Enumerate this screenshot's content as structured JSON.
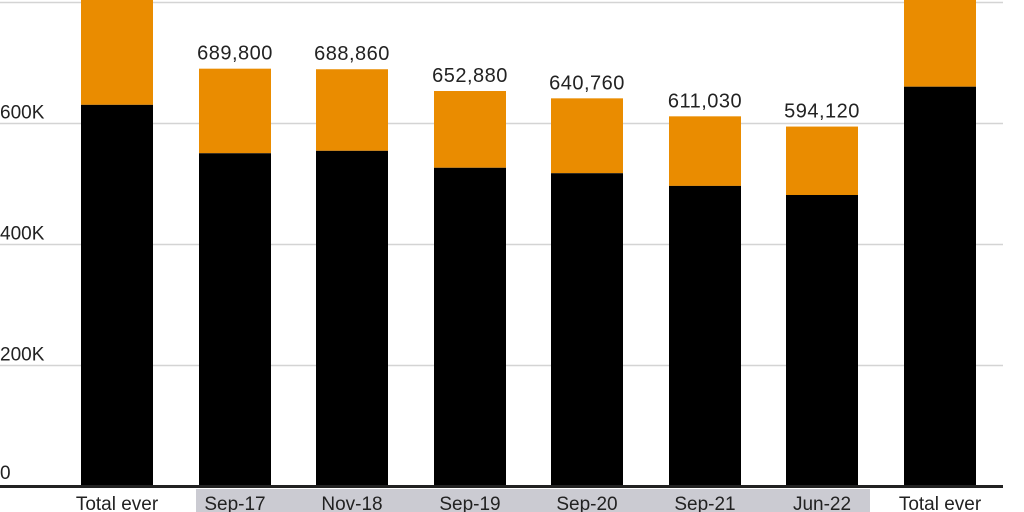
{
  "chart_data": {
    "type": "bar",
    "stacked": true,
    "categories": [
      "Total ever",
      "Sep-17",
      "Nov-18",
      "Sep-19",
      "Sep-20",
      "Sep-21",
      "Jun-22",
      "Total ever"
    ],
    "highlighted_categories": [
      "Sep-17",
      "Nov-18",
      "Sep-19",
      "Sep-20",
      "Sep-21",
      "Jun-22"
    ],
    "series": [
      {
        "color": "#000000",
        "values": [
          630000,
          550000,
          554000,
          526000,
          517000,
          496000,
          481000,
          660000
        ]
      },
      {
        "color": "#EA8C00",
        "values": [
          null,
          139800,
          134860,
          126880,
          123760,
          115030,
          113120,
          null
        ]
      }
    ],
    "totals": [
      null,
      689800,
      688860,
      652880,
      640760,
      611030,
      594120,
      null
    ],
    "data_labels": [
      "",
      "689,800",
      "688,860",
      "652,880",
      "640,760",
      "611,030",
      "594,120",
      ""
    ],
    "y_ticks": [
      0,
      200000,
      400000,
      600000,
      800000
    ],
    "y_tick_labels": [
      "0",
      "200K",
      "400K",
      "600K",
      ""
    ],
    "ylim": [
      0,
      800000
    ],
    "grid": true,
    "highlight_band_color": "#CBCBD2",
    "title": "",
    "xlabel": "",
    "ylabel": ""
  }
}
